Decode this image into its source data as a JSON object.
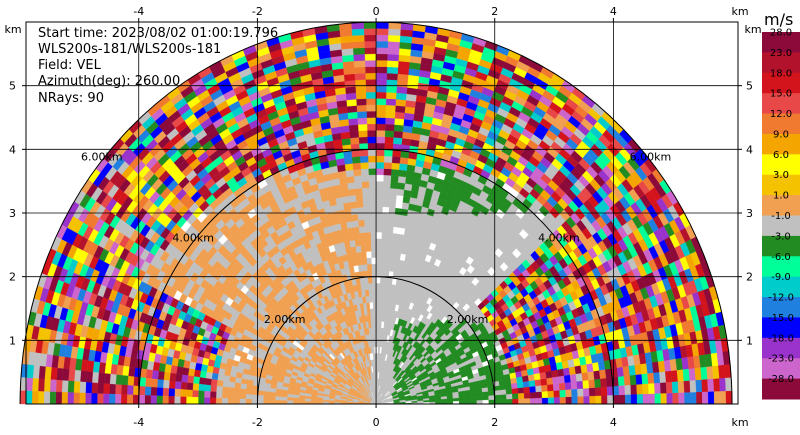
{
  "info": {
    "start_time": "Start time: 2023/08/02 01:00:19.796",
    "instrument": "WLS200s-181/WLS200s-181",
    "field": "Field: VEL",
    "azimuth": "Azimuth(deg): 260.00",
    "nrays": "NRays: 90"
  },
  "chart_data": {
    "type": "heatmap",
    "subtype": "radar-ppi-half-disc",
    "title": "",
    "x_axis": {
      "unit_label": "km",
      "ticks": [
        -4,
        -2,
        0,
        2,
        4
      ],
      "range": [
        -5.9,
        6.1
      ]
    },
    "y_axis": {
      "unit_label": "km",
      "ticks": [
        1,
        2,
        3,
        4,
        5
      ],
      "range": [
        0,
        6.0
      ]
    },
    "grid": true,
    "range_rings": [
      {
        "radius_km": 2,
        "label": "2.00km"
      },
      {
        "radius_km": 4,
        "label": "4.00km"
      },
      {
        "radius_km": 6,
        "label": "6.00km"
      }
    ],
    "colorbar": {
      "unit": "m/s",
      "levels": [
        "28.0",
        "23.0",
        "18.0",
        "15.0",
        "12.0",
        "9.0",
        "6.0",
        "3.0",
        "1.0",
        "-1.0",
        "-3.0",
        "-6.0",
        "-9.0",
        "-12.0",
        "-15.0",
        "-18.0",
        "-23.0",
        "-28.0"
      ],
      "colors": [
        "#8b0a3a",
        "#b3122d",
        "#d4141c",
        "#e84848",
        "#f07a30",
        "#f5a500",
        "#ffff00",
        "#f5c200",
        "#f0a050",
        "#c0c0c0",
        "#228b22",
        "#00ff99",
        "#00cccc",
        "#2080e0",
        "#0000ff",
        "#9933cc",
        "#cc66cc",
        "#8b0a3a"
      ]
    },
    "region_palette": {
      "no_data": "#ffffff",
      "background_weak": "#c0c0c0",
      "receding": "#f0a050",
      "approaching": "#228b22",
      "strong_approach": "#00ff99"
    }
  }
}
